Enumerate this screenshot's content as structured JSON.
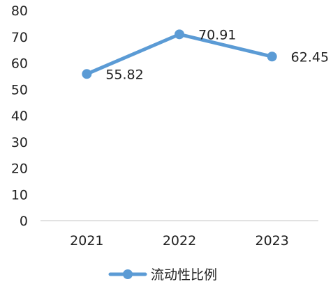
{
  "chart_data": {
    "type": "line",
    "title": "",
    "xlabel": "",
    "ylabel": "",
    "categories": [
      "2021",
      "2022",
      "2023"
    ],
    "series": [
      {
        "name": "流动性比例",
        "values": [
          55.82,
          70.91,
          62.45
        ],
        "value_labels": [
          "55.82",
          "70.91",
          "62.45"
        ]
      }
    ],
    "ylim": [
      0,
      80
    ],
    "yticks": [
      "0",
      "10",
      "20",
      "30",
      "40",
      "50",
      "60",
      "70",
      "80"
    ],
    "grid": false,
    "legend": "bottom",
    "color": "#5b9bd5"
  }
}
